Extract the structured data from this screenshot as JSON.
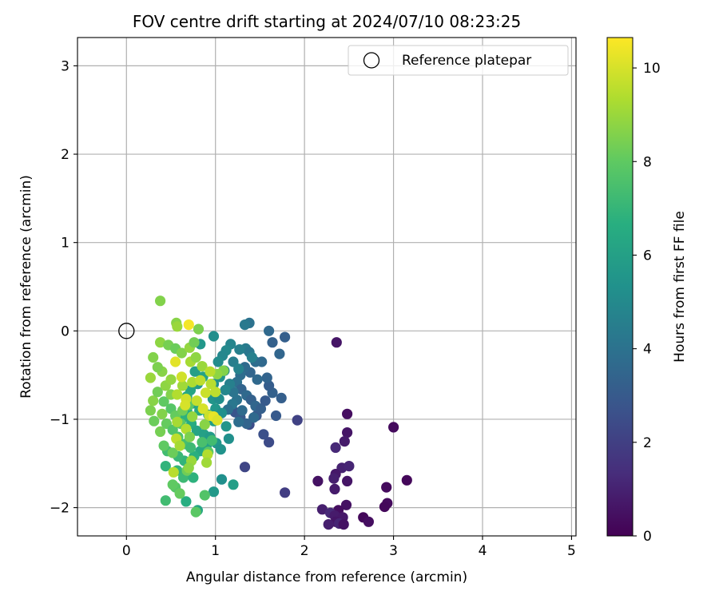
{
  "chart_data": {
    "type": "scatter",
    "title": "FOV centre drift starting at 2024/07/10 08:23:25",
    "xlabel": "Angular distance from reference (arcmin)",
    "ylabel": "Rotation from reference (arcmin)",
    "xlim": [
      -0.55,
      5.05
    ],
    "ylim": [
      -2.32,
      3.32
    ],
    "xticks": [
      0,
      1,
      2,
      3,
      4,
      5
    ],
    "yticks": [
      -2,
      -1,
      0,
      1,
      2,
      3
    ],
    "grid": true,
    "legend": {
      "placement": "top-right",
      "entries": [
        "Reference platepar"
      ]
    },
    "reference_point": {
      "x": 0,
      "y": 0,
      "label": "Reference platepar"
    },
    "colorbar": {
      "label": "Hours from first FF file",
      "min": 0,
      "max": 10.65,
      "ticks": [
        0,
        2,
        4,
        6,
        8,
        10
      ],
      "colormap": "viridis"
    },
    "points": [
      {
        "x": 2.36,
        "y": -0.13,
        "h": 0.6
      },
      {
        "x": 2.48,
        "y": -0.94,
        "h": 0.4
      },
      {
        "x": 3.0,
        "y": -1.09,
        "h": 0.3
      },
      {
        "x": 2.48,
        "y": -1.15,
        "h": 0.6
      },
      {
        "x": 2.45,
        "y": -1.25,
        "h": 0.8
      },
      {
        "x": 2.35,
        "y": -1.32,
        "h": 1.2
      },
      {
        "x": 2.42,
        "y": -1.55,
        "h": 1.0
      },
      {
        "x": 2.5,
        "y": -1.53,
        "h": 1.1
      },
      {
        "x": 2.35,
        "y": -1.62,
        "h": 0.7
      },
      {
        "x": 2.33,
        "y": -1.67,
        "h": 0.9
      },
      {
        "x": 2.15,
        "y": -1.7,
        "h": 0.5
      },
      {
        "x": 2.48,
        "y": -1.7,
        "h": 0.6
      },
      {
        "x": 3.15,
        "y": -1.69,
        "h": 0.2
      },
      {
        "x": 2.92,
        "y": -1.77,
        "h": 0.3
      },
      {
        "x": 2.34,
        "y": -1.79,
        "h": 0.8
      },
      {
        "x": 2.93,
        "y": -1.95,
        "h": 0.3
      },
      {
        "x": 2.9,
        "y": -1.99,
        "h": 0.2
      },
      {
        "x": 2.47,
        "y": -1.97,
        "h": 0.5
      },
      {
        "x": 2.2,
        "y": -2.02,
        "h": 0.9
      },
      {
        "x": 2.38,
        "y": -2.03,
        "h": 0.4
      },
      {
        "x": 2.29,
        "y": -2.06,
        "h": 1.2
      },
      {
        "x": 2.34,
        "y": -2.09,
        "h": 0.8
      },
      {
        "x": 2.43,
        "y": -2.11,
        "h": 0.7
      },
      {
        "x": 2.66,
        "y": -2.11,
        "h": 0.2
      },
      {
        "x": 2.72,
        "y": -2.16,
        "h": 0.4
      },
      {
        "x": 2.35,
        "y": -2.16,
        "h": 0.6
      },
      {
        "x": 2.27,
        "y": -2.19,
        "h": 0.9
      },
      {
        "x": 2.39,
        "y": -2.18,
        "h": 1.1
      },
      {
        "x": 2.44,
        "y": -2.19,
        "h": 0.5
      },
      {
        "x": 1.78,
        "y": -1.83,
        "h": 1.9
      },
      {
        "x": 1.92,
        "y": -1.01,
        "h": 2.1
      },
      {
        "x": 1.33,
        "y": -1.54,
        "h": 2.2
      },
      {
        "x": 1.6,
        "y": -1.26,
        "h": 2.4
      },
      {
        "x": 1.54,
        "y": -1.17,
        "h": 2.6
      },
      {
        "x": 1.38,
        "y": -1.06,
        "h": 2.5
      },
      {
        "x": 1.22,
        "y": -0.92,
        "h": 2.8
      },
      {
        "x": 1.28,
        "y": -0.98,
        "h": 3.0
      },
      {
        "x": 1.46,
        "y": -0.96,
        "h": 2.9
      },
      {
        "x": 1.68,
        "y": -0.96,
        "h": 3.0
      },
      {
        "x": 1.74,
        "y": -0.76,
        "h": 3.2
      },
      {
        "x": 1.64,
        "y": -0.7,
        "h": 3.3
      },
      {
        "x": 1.6,
        "y": -0.62,
        "h": 3.1
      },
      {
        "x": 1.58,
        "y": -0.53,
        "h": 3.4
      },
      {
        "x": 1.47,
        "y": -0.55,
        "h": 3.6
      },
      {
        "x": 1.39,
        "y": -0.47,
        "h": 3.5
      },
      {
        "x": 1.33,
        "y": -0.41,
        "h": 3.7
      },
      {
        "x": 1.28,
        "y": -0.5,
        "h": 3.8
      },
      {
        "x": 1.24,
        "y": -0.58,
        "h": 3.9
      },
      {
        "x": 1.29,
        "y": -0.66,
        "h": 3.4
      },
      {
        "x": 1.35,
        "y": -0.73,
        "h": 3.6
      },
      {
        "x": 1.4,
        "y": -0.78,
        "h": 3.3
      },
      {
        "x": 1.45,
        "y": -0.85,
        "h": 3.5
      },
      {
        "x": 1.51,
        "y": -0.88,
        "h": 3.2
      },
      {
        "x": 1.56,
        "y": -0.79,
        "h": 3.0
      },
      {
        "x": 1.24,
        "y": -0.78,
        "h": 4.0
      },
      {
        "x": 1.19,
        "y": -0.83,
        "h": 4.2
      },
      {
        "x": 1.14,
        "y": -0.89,
        "h": 3.9
      },
      {
        "x": 1.3,
        "y": -0.9,
        "h": 3.7
      },
      {
        "x": 1.43,
        "y": -0.98,
        "h": 3.6
      },
      {
        "x": 1.35,
        "y": -1.05,
        "h": 3.4
      },
      {
        "x": 1.26,
        "y": -1.03,
        "h": 3.8
      },
      {
        "x": 1.2,
        "y": -0.69,
        "h": 4.1
      },
      {
        "x": 1.52,
        "y": -0.35,
        "h": 3.6
      },
      {
        "x": 1.45,
        "y": -0.35,
        "h": 3.8
      },
      {
        "x": 1.64,
        "y": -0.13,
        "h": 3.3
      },
      {
        "x": 1.72,
        "y": -0.26,
        "h": 3.5
      },
      {
        "x": 1.78,
        "y": -0.07,
        "h": 3.2
      },
      {
        "x": 1.6,
        "y": 0.0,
        "h": 3.6
      },
      {
        "x": 1.38,
        "y": 0.09,
        "h": 4.0
      },
      {
        "x": 1.33,
        "y": 0.07,
        "h": 4.3
      },
      {
        "x": 1.34,
        "y": -0.2,
        "h": 4.4
      },
      {
        "x": 1.38,
        "y": -0.24,
        "h": 4.2
      },
      {
        "x": 1.41,
        "y": -0.3,
        "h": 4.6
      },
      {
        "x": 1.27,
        "y": -0.21,
        "h": 4.6
      },
      {
        "x": 1.17,
        "y": -0.15,
        "h": 4.8
      },
      {
        "x": 1.12,
        "y": -0.22,
        "h": 5.0
      },
      {
        "x": 1.08,
        "y": -0.28,
        "h": 4.9
      },
      {
        "x": 1.03,
        "y": -0.35,
        "h": 5.1
      },
      {
        "x": 1.2,
        "y": -0.35,
        "h": 4.5
      },
      {
        "x": 1.26,
        "y": -0.43,
        "h": 4.7
      },
      {
        "x": 1.1,
        "y": -0.45,
        "h": 5.2
      },
      {
        "x": 1.05,
        "y": -0.52,
        "h": 5.4
      },
      {
        "x": 0.98,
        "y": -0.6,
        "h": 5.3
      },
      {
        "x": 1.16,
        "y": -0.6,
        "h": 4.6
      },
      {
        "x": 1.11,
        "y": -0.67,
        "h": 4.9
      },
      {
        "x": 0.97,
        "y": -0.77,
        "h": 5.5
      },
      {
        "x": 1.04,
        "y": -0.77,
        "h": 5.2
      },
      {
        "x": 1.0,
        "y": -0.88,
        "h": 5.6
      },
      {
        "x": 1.07,
        "y": -0.93,
        "h": 5.3
      },
      {
        "x": 0.92,
        "y": -0.95,
        "h": 5.8
      },
      {
        "x": 0.98,
        "y": -1.02,
        "h": 5.9
      },
      {
        "x": 1.12,
        "y": -1.08,
        "h": 5.5
      },
      {
        "x": 0.83,
        "y": -0.15,
        "h": 5.6
      },
      {
        "x": 0.98,
        "y": -0.06,
        "h": 5.2
      },
      {
        "x": 0.77,
        "y": -0.46,
        "h": 5.9
      },
      {
        "x": 0.86,
        "y": -0.52,
        "h": 6.1
      },
      {
        "x": 0.8,
        "y": -0.6,
        "h": 5.7
      },
      {
        "x": 0.72,
        "y": -0.67,
        "h": 6.2
      },
      {
        "x": 0.68,
        "y": -0.74,
        "h": 6.4
      },
      {
        "x": 0.75,
        "y": -0.82,
        "h": 6.0
      },
      {
        "x": 0.82,
        "y": -0.9,
        "h": 6.3
      },
      {
        "x": 0.68,
        "y": -0.9,
        "h": 6.6
      },
      {
        "x": 0.64,
        "y": -0.98,
        "h": 6.8
      },
      {
        "x": 0.73,
        "y": -1.05,
        "h": 6.5
      },
      {
        "x": 0.79,
        "y": -1.13,
        "h": 6.2
      },
      {
        "x": 0.87,
        "y": -1.17,
        "h": 6.0
      },
      {
        "x": 0.94,
        "y": -1.2,
        "h": 5.8
      },
      {
        "x": 1.01,
        "y": -1.27,
        "h": 5.6
      },
      {
        "x": 1.06,
        "y": -1.34,
        "h": 5.4
      },
      {
        "x": 1.15,
        "y": -1.22,
        "h": 5.3
      },
      {
        "x": 0.9,
        "y": -1.3,
        "h": 6.1
      },
      {
        "x": 0.83,
        "y": -1.36,
        "h": 6.4
      },
      {
        "x": 0.76,
        "y": -1.42,
        "h": 6.7
      },
      {
        "x": 0.65,
        "y": -1.47,
        "h": 6.9
      },
      {
        "x": 0.58,
        "y": -1.42,
        "h": 7.1
      },
      {
        "x": 0.46,
        "y": -1.36,
        "h": 7.3
      },
      {
        "x": 0.44,
        "y": -1.53,
        "h": 6.9
      },
      {
        "x": 0.57,
        "y": -1.58,
        "h": 7.0
      },
      {
        "x": 0.64,
        "y": -1.66,
        "h": 7.2
      },
      {
        "x": 0.75,
        "y": -1.66,
        "h": 6.8
      },
      {
        "x": 0.98,
        "y": -1.82,
        "h": 5.7
      },
      {
        "x": 1.07,
        "y": -1.68,
        "h": 5.3
      },
      {
        "x": 1.2,
        "y": -1.74,
        "h": 5.9
      },
      {
        "x": 0.67,
        "y": -1.93,
        "h": 6.6
      },
      {
        "x": 0.8,
        "y": -2.03,
        "h": 6.2
      },
      {
        "x": 0.44,
        "y": -1.92,
        "h": 7.3
      },
      {
        "x": 0.78,
        "y": -2.05,
        "h": 7.9
      },
      {
        "x": 0.88,
        "y": -1.86,
        "h": 7.7
      },
      {
        "x": 0.55,
        "y": -1.77,
        "h": 7.8
      },
      {
        "x": 0.52,
        "y": -1.74,
        "h": 8.0
      },
      {
        "x": 0.6,
        "y": -1.84,
        "h": 8.1
      },
      {
        "x": 0.68,
        "y": -1.58,
        "h": 8.3
      },
      {
        "x": 0.52,
        "y": -1.38,
        "h": 8.2
      },
      {
        "x": 0.42,
        "y": -1.3,
        "h": 8.0
      },
      {
        "x": 0.38,
        "y": -1.14,
        "h": 8.4
      },
      {
        "x": 0.31,
        "y": -1.02,
        "h": 8.2
      },
      {
        "x": 0.27,
        "y": -0.9,
        "h": 8.5
      },
      {
        "x": 0.3,
        "y": -0.79,
        "h": 8.7
      },
      {
        "x": 0.35,
        "y": -0.69,
        "h": 8.3
      },
      {
        "x": 0.42,
        "y": -0.8,
        "h": 8.0
      },
      {
        "x": 0.5,
        "y": -0.88,
        "h": 7.8
      },
      {
        "x": 0.4,
        "y": -0.94,
        "h": 8.6
      },
      {
        "x": 0.45,
        "y": -1.05,
        "h": 8.1
      },
      {
        "x": 0.52,
        "y": -1.12,
        "h": 7.7
      },
      {
        "x": 0.58,
        "y": -1.2,
        "h": 7.6
      },
      {
        "x": 0.66,
        "y": -1.28,
        "h": 7.4
      },
      {
        "x": 0.72,
        "y": -1.32,
        "h": 7.2
      },
      {
        "x": 0.85,
        "y": -1.26,
        "h": 7.5
      },
      {
        "x": 0.92,
        "y": -1.37,
        "h": 7.9
      },
      {
        "x": 0.96,
        "y": -1.24,
        "h": 7.3
      },
      {
        "x": 0.61,
        "y": -1.05,
        "h": 7.9
      },
      {
        "x": 0.55,
        "y": -0.96,
        "h": 8.1
      },
      {
        "x": 0.63,
        "y": -0.9,
        "h": 8.3
      },
      {
        "x": 0.7,
        "y": -0.84,
        "h": 7.9
      },
      {
        "x": 0.5,
        "y": -0.72,
        "h": 8.6
      },
      {
        "x": 0.44,
        "y": -0.62,
        "h": 8.8
      },
      {
        "x": 0.5,
        "y": -0.55,
        "h": 8.9
      },
      {
        "x": 0.4,
        "y": -0.46,
        "h": 8.7
      },
      {
        "x": 0.35,
        "y": -0.41,
        "h": 8.5
      },
      {
        "x": 0.27,
        "y": -0.53,
        "h": 9.0
      },
      {
        "x": 0.3,
        "y": -0.3,
        "h": 8.6
      },
      {
        "x": 0.38,
        "y": -0.13,
        "h": 8.8
      },
      {
        "x": 0.47,
        "y": -0.16,
        "h": 8.4
      },
      {
        "x": 0.55,
        "y": -0.2,
        "h": 8.2
      },
      {
        "x": 0.62,
        "y": -0.25,
        "h": 8.6
      },
      {
        "x": 0.71,
        "y": -0.19,
        "h": 8.9
      },
      {
        "x": 0.76,
        "y": -0.13,
        "h": 8.3
      },
      {
        "x": 0.56,
        "y": 0.09,
        "h": 8.7
      },
      {
        "x": 0.57,
        "y": 0.05,
        "h": 9.0
      },
      {
        "x": 0.81,
        "y": 0.02,
        "h": 8.5
      },
      {
        "x": 0.38,
        "y": 0.34,
        "h": 8.6
      },
      {
        "x": 0.72,
        "y": -0.35,
        "h": 9.2
      },
      {
        "x": 0.85,
        "y": -0.4,
        "h": 9.0
      },
      {
        "x": 0.74,
        "y": -0.58,
        "h": 9.3
      },
      {
        "x": 0.63,
        "y": -0.62,
        "h": 9.1
      },
      {
        "x": 0.57,
        "y": -0.72,
        "h": 9.4
      },
      {
        "x": 0.83,
        "y": -0.56,
        "h": 9.6
      },
      {
        "x": 0.89,
        "y": -0.7,
        "h": 9.8
      },
      {
        "x": 0.95,
        "y": -0.6,
        "h": 9.5
      },
      {
        "x": 0.79,
        "y": -0.79,
        "h": 9.7
      },
      {
        "x": 0.67,
        "y": -0.77,
        "h": 9.9
      },
      {
        "x": 0.86,
        "y": -0.88,
        "h": 10.0
      },
      {
        "x": 0.93,
        "y": -0.96,
        "h": 9.8
      },
      {
        "x": 1.0,
        "y": -0.69,
        "h": 9.6
      },
      {
        "x": 0.62,
        "y": -0.52,
        "h": 9.9
      },
      {
        "x": 0.55,
        "y": -0.35,
        "h": 10.2
      },
      {
        "x": 0.7,
        "y": 0.07,
        "h": 10.5
      },
      {
        "x": 0.98,
        "y": -0.97,
        "h": 10.3
      },
      {
        "x": 1.02,
        "y": -1.01,
        "h": 10.1
      },
      {
        "x": 0.67,
        "y": -1.11,
        "h": 9.4
      },
      {
        "x": 0.56,
        "y": -1.22,
        "h": 9.6
      },
      {
        "x": 0.6,
        "y": -1.3,
        "h": 9.2
      },
      {
        "x": 0.91,
        "y": -1.4,
        "h": 9.4
      },
      {
        "x": 0.9,
        "y": -1.49,
        "h": 9.1
      },
      {
        "x": 0.73,
        "y": -1.47,
        "h": 9.0
      },
      {
        "x": 0.7,
        "y": -1.55,
        "h": 8.8
      },
      {
        "x": 0.53,
        "y": -1.6,
        "h": 9.5
      },
      {
        "x": 0.66,
        "y": -0.84,
        "h": 10.0
      },
      {
        "x": 0.74,
        "y": -0.97,
        "h": 8.9
      },
      {
        "x": 0.88,
        "y": -1.06,
        "h": 8.7
      },
      {
        "x": 1.09,
        "y": -0.45,
        "h": 8.6
      },
      {
        "x": 1.02,
        "y": -0.49,
        "h": 8.8
      },
      {
        "x": 0.94,
        "y": -0.46,
        "h": 9.5
      },
      {
        "x": 0.78,
        "y": -0.3,
        "h": 8.8
      },
      {
        "x": 0.71,
        "y": -1.2,
        "h": 8.5
      },
      {
        "x": 0.57,
        "y": -1.03,
        "h": 9.2
      }
    ]
  }
}
